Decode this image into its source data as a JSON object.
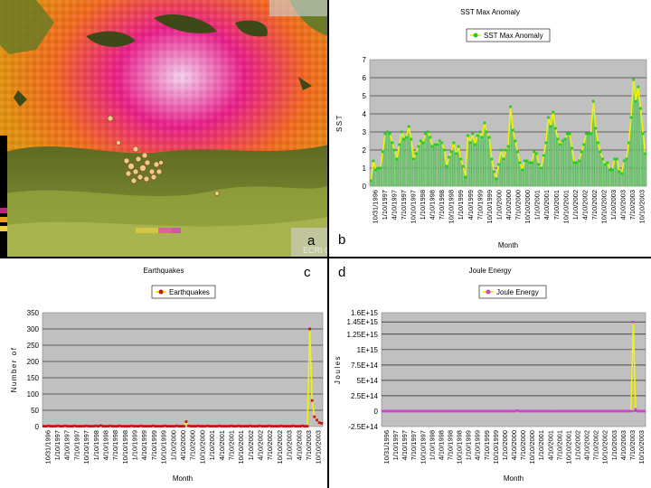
{
  "map_panel": {
    "letter": "a",
    "watermark": "ECRI GS...",
    "colors": {
      "hot": "#e8208a",
      "warm": "#f08a10",
      "land": "#6b7a26"
    }
  },
  "chart_data": [
    {
      "id": "b",
      "letter": "b",
      "type": "line",
      "title": "SST Max Anomaly",
      "legend": "SST Max Anomaly",
      "xlabel": "Month",
      "ylabel": "SST",
      "ylim": [
        0,
        7
      ],
      "yticks": [
        "0",
        "1",
        "2",
        "3",
        "4",
        "5",
        "6",
        "7"
      ],
      "xtick_labels": [
        "10/31/1996",
        "1/10/1997",
        "4/10/1997",
        "7/10/1997",
        "10/10/1997",
        "1/10/1998",
        "4/10/1998",
        "7/10/1998",
        "10/10/1998",
        "1/10/1999",
        "4/10/1999",
        "7/10/1999",
        "10/10/1999",
        "1/10/2000",
        "4/10/2000",
        "7/10/2000",
        "10/10/2000",
        "1/10/2001",
        "4/10/2001",
        "7/10/2001",
        "10/10/2001",
        "1/10/2002",
        "4/10/2002",
        "7/10/2002",
        "10/10/2002",
        "1/10/2003",
        "4/10/2003",
        "7/10/2003",
        "10/10/2003"
      ],
      "values": [
        0.3,
        1.4,
        0.9,
        1.0,
        1.0,
        1.9,
        2.9,
        3.0,
        2.9,
        2.4,
        2.0,
        1.5,
        2.3,
        3.0,
        2.6,
        2.7,
        3.3,
        2.6,
        1.5,
        1.8,
        2.2,
        2.5,
        2.4,
        2.9,
        3.0,
        2.7,
        2.2,
        2.3,
        2.3,
        2.5,
        2.4,
        2.0,
        1.1,
        1.6,
        1.9,
        2.4,
        1.8,
        2.2,
        1.5,
        1.1,
        0.5,
        2.8,
        2.4,
        2.9,
        2.3,
        2.8,
        3.0,
        2.7,
        3.5,
        3.0,
        2.7,
        1.5,
        0.8,
        0.4,
        1.2,
        2.0,
        1.5,
        2.0,
        2.2,
        4.4,
        3.1,
        2.5,
        1.9,
        1.3,
        0.9,
        1.4,
        1.4,
        1.3,
        1.3,
        1.9,
        1.8,
        1.2,
        1.0,
        1.7,
        2.4,
        3.8,
        3.3,
        4.1,
        3.2,
        2.6,
        2.3,
        2.5,
        2.6,
        2.9,
        2.9,
        2.1,
        1.3,
        1.3,
        1.4,
        1.9,
        2.3,
        2.9,
        2.9,
        2.9,
        4.7,
        3.2,
        2.4,
        1.9,
        1.5,
        1.2,
        1.3,
        0.9,
        0.9,
        1.5,
        1.5,
        0.8,
        0.7,
        1.4,
        1.5,
        2.4,
        3.8,
        5.9,
        4.7,
        5.5,
        4.3,
        2.9,
        1.8
      ],
      "colors": {
        "line": "#f2f20a",
        "marker": "#22cc22",
        "bars": "#7fd07f",
        "plot_bg": "#c0c0c0"
      }
    },
    {
      "id": "c",
      "letter": "c",
      "type": "line",
      "title": "Earthquakes",
      "legend": "Earthquakes",
      "xlabel": "Month",
      "ylabel": "Number of",
      "ylim": [
        0,
        350
      ],
      "yticks": [
        "0",
        "50",
        "100",
        "150",
        "200",
        "250",
        "300",
        "350"
      ],
      "xtick_labels": [
        "10/31/1996",
        "1/10/1997",
        "4/10/1997",
        "7/10/1997",
        "10/10/1997",
        "1/10/1998",
        "4/10/1998",
        "7/10/1998",
        "10/10/1998",
        "1/10/1999",
        "4/10/1999",
        "7/10/1999",
        "10/10/1999",
        "1/10/2000",
        "4/10/2000",
        "7/10/2000",
        "10/10/2000",
        "1/10/2001",
        "4/10/2001",
        "7/10/2001",
        "10/10/2001",
        "1/10/2002",
        "4/10/2002",
        "7/10/2002",
        "10/10/2002",
        "1/10/2003",
        "4/10/2003",
        "7/10/2003",
        "10/10/2003"
      ],
      "values": [
        1,
        1,
        2,
        1,
        1,
        1,
        2,
        1,
        1,
        2,
        1,
        1,
        1,
        2,
        1,
        1,
        1,
        1,
        2,
        1,
        1,
        1,
        2,
        1,
        3,
        1,
        1,
        1,
        2,
        1,
        1,
        1,
        2,
        1,
        1,
        1,
        1,
        2,
        1,
        1,
        1,
        2,
        1,
        1,
        1,
        1,
        2,
        1,
        1,
        1,
        1,
        2,
        1,
        1,
        1,
        1,
        2,
        1,
        1,
        1,
        15,
        2,
        1,
        1,
        1,
        2,
        1,
        1,
        1,
        2,
        1,
        1,
        1,
        1,
        2,
        1,
        1,
        1,
        1,
        2,
        1,
        1,
        2,
        1,
        1,
        1,
        1,
        2,
        1,
        1,
        1,
        2,
        1,
        1,
        1,
        2,
        1,
        1,
        1,
        1,
        2,
        1,
        1,
        1,
        1,
        2,
        1,
        1,
        1,
        2,
        1,
        1,
        300,
        80,
        30,
        20,
        12,
        10
      ],
      "colors": {
        "line": "#f2f20a",
        "marker": "#cc1010",
        "plot_bg": "#c0c0c0"
      }
    },
    {
      "id": "d",
      "letter": "d",
      "type": "line",
      "title": "Joule Energy",
      "legend": "Joule Energy",
      "xlabel": "Month",
      "ylabel": "Joules",
      "ylim": [
        -250000000000000,
        1600000000000000
      ],
      "yticks": [
        "-2.5E+14",
        "0",
        "2.5E+14",
        "5E+14",
        "7.5E+14",
        "1E+15",
        "1.25E+15",
        "1.45E+15",
        "1.6E+15"
      ],
      "ytick_values": [
        -250000000000000,
        0,
        250000000000000,
        500000000000000,
        750000000000000,
        1000000000000000,
        1250000000000000,
        1450000000000000,
        1600000000000000
      ],
      "xtick_labels": [
        "10/31/1996",
        "1/10/1997",
        "4/10/1997",
        "7/10/1997",
        "10/10/1997",
        "1/10/1998",
        "4/10/1998",
        "7/10/1998",
        "10/10/1998",
        "1/10/1999",
        "4/10/1999",
        "7/10/1999",
        "10/10/1999",
        "1/10/2000",
        "4/10/2000",
        "7/10/2000",
        "10/10/2000",
        "1/10/2001",
        "4/10/2001",
        "7/10/2001",
        "10/10/2001",
        "1/10/2002",
        "4/10/2002",
        "7/10/2002",
        "10/10/2002",
        "1/10/2003",
        "4/10/2003",
        "7/10/2003",
        "10/10/2003"
      ],
      "values": [
        0,
        0,
        0,
        0,
        0,
        0,
        0,
        0,
        0,
        0,
        0,
        0,
        0,
        0,
        0,
        0,
        0,
        0,
        0,
        0,
        0,
        0,
        0,
        0,
        0,
        0,
        0,
        0,
        0,
        0,
        0,
        0,
        0,
        0,
        0,
        0,
        0,
        0,
        0,
        0,
        0,
        0,
        0,
        0,
        0,
        0,
        0,
        0,
        0,
        0,
        0,
        0,
        0,
        0,
        0,
        0,
        0,
        0,
        0,
        0,
        10000000000000,
        0,
        0,
        0,
        0,
        0,
        0,
        0,
        0,
        0,
        0,
        0,
        0,
        0,
        0,
        0,
        0,
        0,
        0,
        0,
        0,
        0,
        0,
        0,
        0,
        0,
        0,
        0,
        0,
        0,
        0,
        0,
        0,
        0,
        0,
        0,
        0,
        0,
        0,
        0,
        0,
        0,
        0,
        0,
        0,
        0,
        0,
        0,
        0,
        0,
        0,
        0,
        1450000000000000,
        30000000000000,
        0,
        0,
        0,
        0
      ],
      "colors": {
        "line": "#f2f20a",
        "marker": "#cc44cc",
        "plot_bg": "#c0c0c0"
      }
    }
  ]
}
